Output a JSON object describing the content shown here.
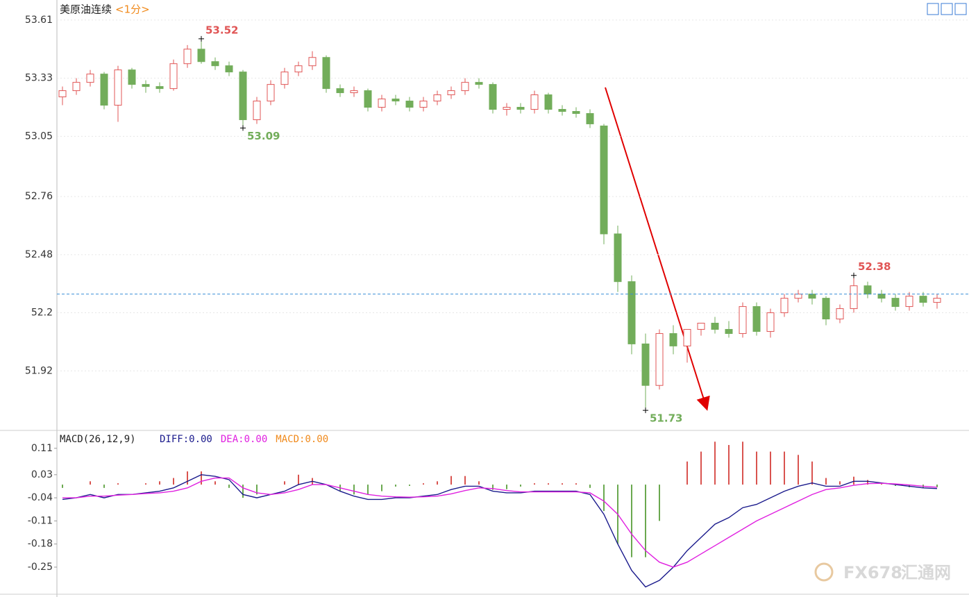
{
  "chart_data": [
    {
      "type": "candlestick",
      "title": "美原油连续",
      "subtitle": "<1分>",
      "open": [
        53.24,
        53.27,
        53.31,
        53.35,
        53.2,
        53.37,
        53.3,
        53.29,
        53.28,
        53.4,
        53.47,
        53.41,
        53.39,
        53.36,
        53.13,
        53.22,
        53.3,
        53.36,
        53.39,
        53.43,
        53.28,
        53.26,
        53.27,
        53.19,
        53.23,
        53.22,
        53.19,
        53.22,
        53.25,
        53.27,
        53.31,
        53.3,
        53.18,
        53.19,
        53.18,
        53.25,
        53.18,
        53.17,
        53.16,
        53.1,
        52.58,
        52.35,
        52.05,
        51.85,
        52.1,
        52.04,
        52.12,
        52.15,
        52.12,
        52.1,
        52.23,
        52.11,
        52.2,
        52.27,
        52.29,
        52.27,
        52.17,
        52.22,
        52.33,
        52.29,
        52.27,
        52.23,
        52.28,
        52.25
      ],
      "high": [
        53.29,
        53.33,
        53.37,
        53.36,
        53.39,
        53.38,
        53.32,
        53.31,
        53.42,
        53.49,
        53.52,
        53.43,
        53.41,
        53.37,
        53.24,
        53.32,
        53.38,
        53.41,
        53.46,
        53.44,
        53.3,
        53.29,
        53.28,
        53.25,
        53.25,
        53.24,
        53.24,
        53.27,
        53.29,
        53.33,
        53.33,
        53.31,
        53.21,
        53.21,
        53.27,
        53.26,
        53.2,
        53.19,
        53.18,
        53.11,
        52.62,
        52.38,
        52.1,
        52.12,
        52.14,
        52.12,
        52.15,
        52.18,
        52.16,
        52.25,
        52.25,
        52.22,
        52.29,
        52.31,
        52.31,
        52.28,
        52.24,
        52.38,
        52.35,
        52.31,
        52.29,
        52.3,
        52.3,
        52.29
      ],
      "low": [
        53.2,
        53.25,
        53.29,
        53.18,
        53.12,
        53.28,
        53.26,
        53.26,
        53.27,
        53.38,
        53.4,
        53.37,
        53.34,
        53.09,
        53.11,
        53.2,
        53.28,
        53.34,
        53.37,
        53.26,
        53.24,
        53.24,
        53.17,
        53.17,
        53.2,
        53.17,
        53.17,
        53.2,
        53.23,
        53.25,
        53.28,
        53.16,
        53.15,
        53.16,
        53.16,
        53.16,
        53.15,
        53.14,
        53.09,
        52.53,
        52.3,
        52.0,
        51.73,
        51.83,
        52.0,
        51.96,
        52.09,
        52.1,
        52.08,
        52.08,
        52.09,
        52.08,
        52.18,
        52.25,
        52.24,
        52.14,
        52.15,
        52.2,
        52.27,
        52.25,
        52.21,
        52.21,
        52.23,
        52.22
      ],
      "close": [
        53.27,
        53.31,
        53.35,
        53.2,
        53.37,
        53.3,
        53.29,
        53.28,
        53.4,
        53.47,
        53.41,
        53.39,
        53.36,
        53.13,
        53.22,
        53.3,
        53.36,
        53.39,
        53.43,
        53.28,
        53.26,
        53.27,
        53.19,
        53.23,
        53.22,
        53.19,
        53.22,
        53.25,
        53.27,
        53.31,
        53.3,
        53.18,
        53.19,
        53.18,
        53.25,
        53.18,
        53.17,
        53.16,
        53.11,
        52.58,
        52.35,
        52.05,
        51.85,
        52.1,
        52.04,
        52.12,
        52.15,
        52.12,
        52.1,
        52.23,
        52.11,
        52.2,
        52.27,
        52.29,
        52.27,
        52.17,
        52.22,
        52.33,
        52.29,
        52.27,
        52.23,
        52.28,
        52.25,
        52.27
      ],
      "up_color": "#e05555",
      "down_color": "#72ad5a",
      "ylim": [
        51.64,
        53.68
      ],
      "yticks": [
        53.61,
        53.33,
        53.05,
        52.76,
        52.48,
        52.2,
        51.92
      ],
      "grid": true,
      "reference_line": 52.29,
      "watermark": "FX678",
      "watermark_cn": "汇通网"
    },
    {
      "type": "macd",
      "title": "MACD(26,12,9)",
      "ylim": [
        -0.33,
        0.16
      ],
      "yticks": [
        0.11,
        0.03,
        -0.04,
        -0.11,
        -0.18,
        -0.25
      ],
      "grid": false,
      "series": [
        {
          "name": "DIFF:0.00",
          "color": "#1a1a8c",
          "kind": "line",
          "values": [
            -0.045,
            -0.04,
            -0.03,
            -0.04,
            -0.03,
            -0.03,
            -0.025,
            -0.02,
            -0.01,
            0.01,
            0.03,
            0.025,
            0.015,
            -0.03,
            -0.04,
            -0.03,
            -0.02,
            0.0,
            0.01,
            0.0,
            -0.02,
            -0.035,
            -0.045,
            -0.045,
            -0.04,
            -0.04,
            -0.035,
            -0.03,
            -0.015,
            -0.005,
            -0.005,
            -0.02,
            -0.025,
            -0.025,
            -0.02,
            -0.02,
            -0.02,
            -0.02,
            -0.03,
            -0.09,
            -0.18,
            -0.26,
            -0.31,
            -0.29,
            -0.25,
            -0.2,
            -0.16,
            -0.12,
            -0.1,
            -0.07,
            -0.06,
            -0.04,
            -0.02,
            -0.005,
            0.005,
            -0.005,
            -0.005,
            0.01,
            0.01,
            0.005,
            0.0,
            -0.005,
            -0.01,
            -0.012
          ]
        },
        {
          "name": "DEA:0.00",
          "color": "#e020e0",
          "kind": "line",
          "values": [
            -0.04,
            -0.04,
            -0.035,
            -0.035,
            -0.032,
            -0.03,
            -0.027,
            -0.025,
            -0.02,
            -0.01,
            0.01,
            0.02,
            0.02,
            -0.01,
            -0.025,
            -0.03,
            -0.025,
            -0.015,
            0.0,
            0.0,
            -0.01,
            -0.02,
            -0.03,
            -0.035,
            -0.037,
            -0.038,
            -0.037,
            -0.035,
            -0.028,
            -0.018,
            -0.01,
            -0.012,
            -0.018,
            -0.022,
            -0.022,
            -0.022,
            -0.022,
            -0.022,
            -0.025,
            -0.05,
            -0.09,
            -0.15,
            -0.2,
            -0.235,
            -0.25,
            -0.235,
            -0.21,
            -0.185,
            -0.16,
            -0.135,
            -0.11,
            -0.09,
            -0.07,
            -0.05,
            -0.03,
            -0.015,
            -0.01,
            -0.002,
            0.003,
            0.004,
            0.002,
            -0.001,
            -0.005,
            -0.008
          ]
        },
        {
          "name": "MACD:0.00",
          "color": "#f08a1c",
          "kind": "histogram",
          "up_color": "#d9534f",
          "down_color": "#6aa84f",
          "values": [
            -0.01,
            0,
            0.01,
            -0.01,
            0.004,
            0,
            0.004,
            0.01,
            0.02,
            0.04,
            0.04,
            0.01,
            -0.01,
            -0.04,
            -0.03,
            0,
            0.01,
            0.03,
            0.02,
            0,
            -0.02,
            -0.03,
            -0.03,
            -0.02,
            -0.006,
            -0.004,
            0.004,
            0.01,
            0.026,
            0.026,
            0.01,
            -0.016,
            -0.014,
            -0.006,
            0.004,
            0.004,
            0.004,
            0.004,
            -0.01,
            -0.08,
            -0.18,
            -0.22,
            -0.22,
            -0.11,
            0,
            0.07,
            0.1,
            0.13,
            0.12,
            0.13,
            0.1,
            0.1,
            0.1,
            0.09,
            0.07,
            0.02,
            0.01,
            0.024,
            0.014,
            0.002,
            -0.004,
            -0.008,
            -0.01,
            -0.008
          ]
        }
      ]
    }
  ]
}
